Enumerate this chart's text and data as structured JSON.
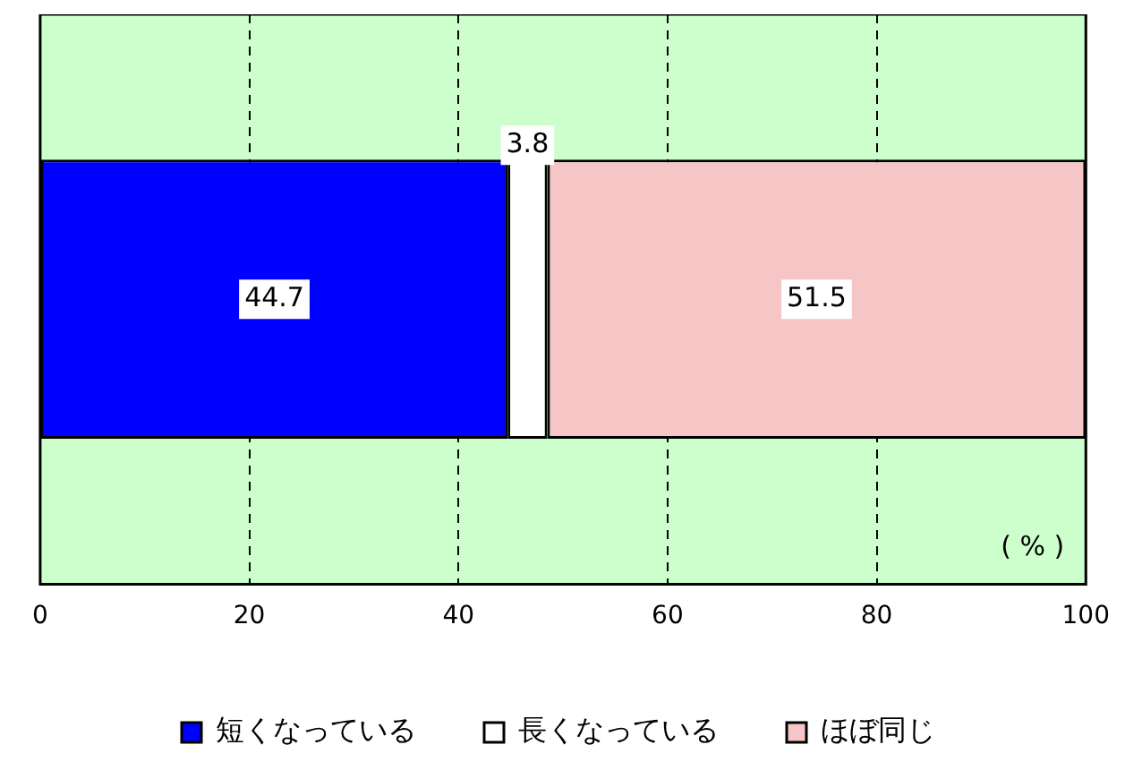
{
  "chart_data": {
    "type": "bar",
    "orientation": "horizontal",
    "stacked": true,
    "categories": [
      null
    ],
    "series": [
      {
        "name": "短くなっている",
        "color": "#0000ff",
        "values": [
          44.7
        ]
      },
      {
        "name": "長くなっている",
        "color": "#ffffff",
        "values": [
          3.8
        ]
      },
      {
        "name": "ほぼ同じ",
        "color": "#f6c6c6",
        "values": [
          51.5
        ]
      }
    ],
    "xlim": [
      0,
      100
    ],
    "xticks": [
      0,
      20,
      40,
      60,
      80,
      100
    ],
    "grid": "x",
    "line_style": "dashed",
    "legend": "bottom",
    "data_labels": true,
    "annotations": [
      "( % )"
    ]
  }
}
